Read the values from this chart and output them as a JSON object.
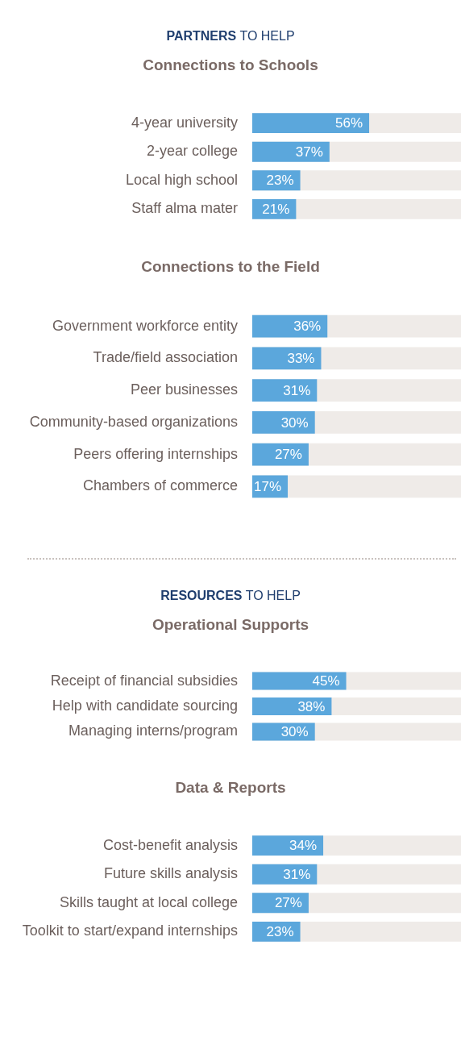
{
  "chart_data": [
    {
      "type": "bar",
      "orientation": "horizontal",
      "subtitle": "PARTNERS TO HELP",
      "title": "Connections to Schools",
      "categories": [
        "4-year university",
        "2-year college",
        "Local high school",
        "Staff alma mater"
      ],
      "values": [
        56,
        37,
        23,
        21
      ],
      "value_labels": [
        "56%",
        "37%",
        "23%",
        "21%"
      ],
      "color": "#5ba7dc",
      "xlim": [
        0,
        100
      ],
      "tick_labels": "y",
      "grid": false,
      "legend": false
    },
    {
      "type": "bar",
      "orientation": "horizontal",
      "title": "Connections to the Field",
      "categories": [
        "Government workforce entity",
        "Trade/field association",
        "Peer businesses",
        "Community-based organizations",
        "Peers offering internships",
        "Chambers of commerce"
      ],
      "values": [
        36,
        33,
        31,
        30,
        27,
        17
      ],
      "value_labels": [
        "36%",
        "33%",
        "31%",
        "30%",
        "27%",
        "17%"
      ],
      "color": "#5ba7dc",
      "xlim": [
        0,
        100
      ],
      "tick_labels": "y",
      "grid": false,
      "legend": false
    },
    {
      "type": "bar",
      "orientation": "horizontal",
      "subtitle": "RESOURCES TO HELP",
      "title": "Operational Supports",
      "categories": [
        "Receipt of financial subsidies",
        "Help with candidate sourcing",
        "Managing interns/program"
      ],
      "values": [
        45,
        38,
        30
      ],
      "value_labels": [
        "45%",
        "38%",
        "30%"
      ],
      "color": "#5ba7dc",
      "xlim": [
        0,
        100
      ],
      "tick_labels": "y",
      "grid": false,
      "legend": false
    },
    {
      "type": "bar",
      "orientation": "horizontal",
      "title": "Data & Reports",
      "categories": [
        "Cost-benefit analysis",
        "Future skills analysis",
        "Skills taught at local college",
        "Toolkit to start/expand internships"
      ],
      "values": [
        34,
        31,
        27,
        23
      ],
      "value_labels": [
        "34%",
        "31%",
        "27%",
        "23%"
      ],
      "color": "#5ba7dc",
      "xlim": [
        0,
        100
      ],
      "tick_labels": "y",
      "grid": false,
      "legend": false
    }
  ]
}
